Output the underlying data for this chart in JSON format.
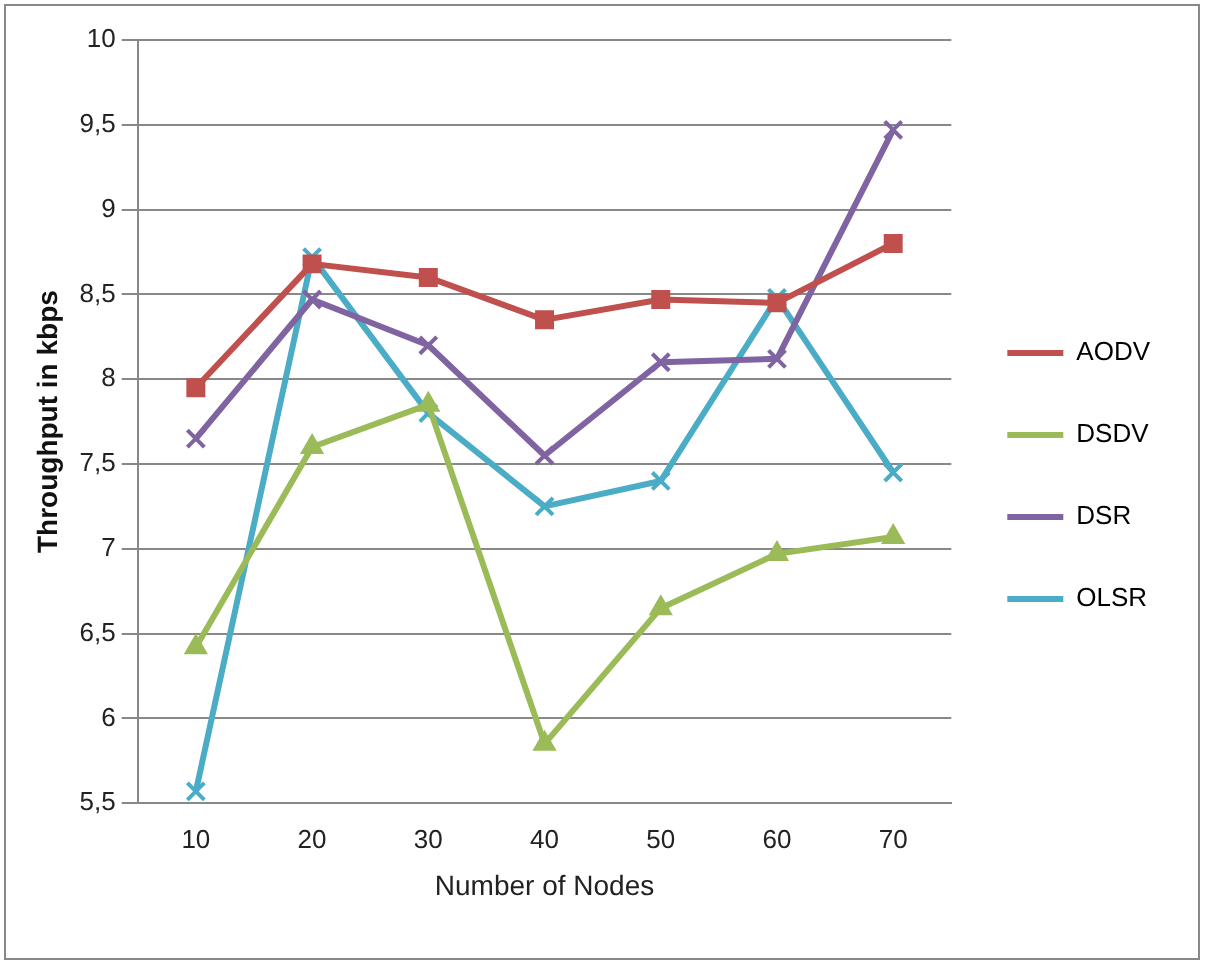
{
  "chart_data": {
    "type": "line",
    "xlabel": "Number of Nodes",
    "ylabel": "Throughput in kbps",
    "categories": [
      "10",
      "20",
      "30",
      "40",
      "50",
      "60",
      "70"
    ],
    "series": [
      {
        "name": "AODV",
        "color": "#c0504d",
        "marker": "square",
        "values": [
          7.95,
          8.68,
          8.6,
          8.35,
          8.47,
          8.45,
          8.8
        ]
      },
      {
        "name": "DSDV",
        "color": "#9bbb59",
        "marker": "triangle",
        "values": [
          6.42,
          7.6,
          7.85,
          5.85,
          6.65,
          6.97,
          7.07
        ]
      },
      {
        "name": "DSR",
        "color": "#8064a2",
        "marker": "cross",
        "values": [
          7.65,
          8.47,
          8.2,
          7.55,
          8.1,
          8.12,
          9.47
        ]
      },
      {
        "name": "OLSR",
        "color": "#4bacc6",
        "marker": "cross",
        "values": [
          5.57,
          8.72,
          7.8,
          7.25,
          7.4,
          8.48,
          7.45
        ]
      }
    ],
    "ylim": [
      5.5,
      10
    ],
    "yticks": [
      {
        "value": 5.5,
        "label": "5,5"
      },
      6,
      {
        "value": 6.5,
        "label": "6,5"
      },
      7,
      {
        "value": 7.5,
        "label": "7,5"
      },
      8,
      {
        "value": 8.5,
        "label": "8,5"
      },
      9,
      {
        "value": 9.5,
        "label": "9,5"
      },
      10
    ],
    "grid": "y",
    "legend": "right",
    "line_style": "solid"
  }
}
